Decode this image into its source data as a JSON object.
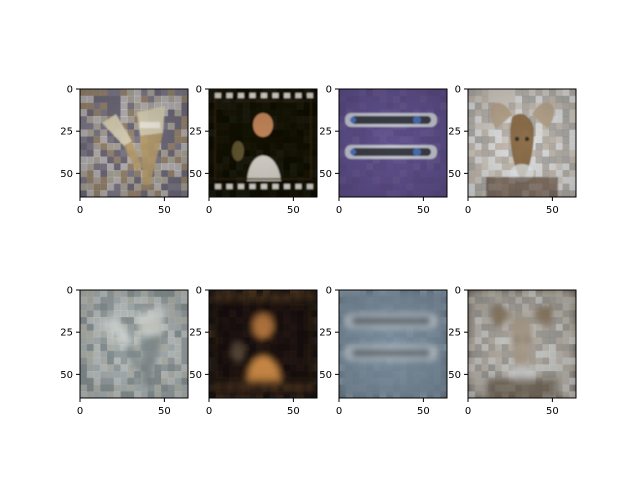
{
  "figure": {
    "background": "#ffffff",
    "axis_color": "#000000"
  },
  "grid": {
    "rows": 2,
    "cols": 4
  },
  "axes_defaults": {
    "xlim": [
      0,
      64
    ],
    "ylim": [
      64,
      0
    ],
    "xticks": [
      0,
      50
    ],
    "yticks": [
      0,
      25,
      50
    ]
  },
  "panels": [
    {
      "row": 0,
      "col": 0,
      "kind": "original",
      "subject": "two-paint-brushes",
      "palette": [
        "#6f6a7a",
        "#8b8594",
        "#d7cfb2",
        "#b69b6a",
        "#f1ede4"
      ]
    },
    {
      "row": 0,
      "col": 1,
      "kind": "original",
      "subject": "film-frame-performer",
      "palette": [
        "#0b0a06",
        "#3a2a14",
        "#c98a5c",
        "#e8e4dc",
        "#7a6a3a"
      ]
    },
    {
      "row": 0,
      "col": 2,
      "kind": "original",
      "subject": "two-remote-controls",
      "palette": [
        "#5f4f8c",
        "#6d5d9a",
        "#2c2c34",
        "#c9ccd6",
        "#4d79c9"
      ]
    },
    {
      "row": 0,
      "col": 3,
      "kind": "original",
      "subject": "bighorn-ram",
      "palette": [
        "#b9a58c",
        "#8a6a45",
        "#5a4331",
        "#e7eef2",
        "#2e2a25"
      ]
    },
    {
      "row": 1,
      "col": 0,
      "kind": "reconstruction",
      "subject": "two-paint-brushes",
      "palette": [
        "#9aa3a4",
        "#b8bfbf",
        "#d8ddd9",
        "#7f8a8c",
        "#c6c7b8"
      ]
    },
    {
      "row": 1,
      "col": 1,
      "kind": "reconstruction",
      "subject": "film-frame-performer",
      "palette": [
        "#151210",
        "#3a2a1a",
        "#b97a3f",
        "#e39a4e",
        "#6e5a46"
      ]
    },
    {
      "row": 1,
      "col": 2,
      "kind": "reconstruction",
      "subject": "two-remote-controls",
      "palette": [
        "#7b8fa0",
        "#9fb2c2",
        "#49525c",
        "#c9d3da",
        "#5b6d7e"
      ]
    },
    {
      "row": 1,
      "col": 3,
      "kind": "reconstruction",
      "subject": "bighorn-ram",
      "palette": [
        "#8b7a62",
        "#a79a88",
        "#5b4b3a",
        "#d7dadc",
        "#3b342c"
      ]
    }
  ]
}
